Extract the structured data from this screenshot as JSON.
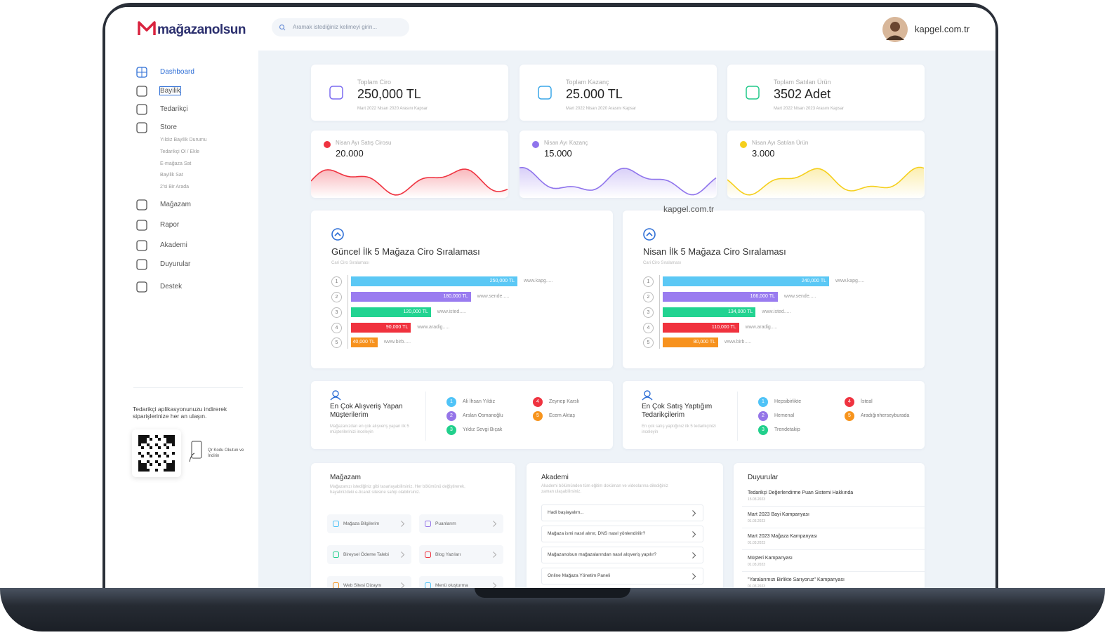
{
  "header": {
    "logo": "mağazanolsun",
    "search_placeholder": "Aramak istediğiniz kelimeyi girin...",
    "user": "kapgel.com.tr"
  },
  "sidebar": {
    "items": [
      "Dashboard",
      "Bayilik",
      "Tedarikçi",
      "Store",
      "Mağazam",
      "Rapor",
      "Akademi",
      "Duyurular",
      "Destek"
    ],
    "store_sub": [
      "Yıldız Bayilik Durumu",
      "Tedarikçi Ol / Ekle",
      "E-mağaza Sat",
      "Bayilik Sat",
      "2'si Bir Arada"
    ],
    "app_promo": "Tedarikçi aplikasyonunuzu indirerek siparişlerinize her an ulaşın.",
    "qr_text": "Qr Kodu Okutun ve İndirin"
  },
  "stats": [
    {
      "label": "Toplam Ciro",
      "value": "250,000 TL",
      "note": "Mart 2022 Nisan 2020 Arasını Kapsar",
      "color": "#7b6cf0"
    },
    {
      "label": "Toplam Kazanç",
      "value": "25.000 TL",
      "note": "Mart 2022 Nisan 2020 Arasını Kapsar",
      "color": "#3aa7e8"
    },
    {
      "label": "Toplam Satılan Ürün",
      "value": "3502 Adet",
      "note": "Mart 2022 Nisan 2023 Arasını Kapsar",
      "color": "#22c98a"
    }
  ],
  "monthly": [
    {
      "label": "Nisan Ayı Satış Cirosu",
      "value": "20.000",
      "color": "#ef3340"
    },
    {
      "label": "Nisan Ayı Kazanç",
      "value": "15.000",
      "color": "#8f74ec"
    },
    {
      "label": "Nisan Ayı Satılan Ürün",
      "value": "3.000",
      "color": "#f5cf1c"
    }
  ],
  "watermark": "kapgel.com.tr",
  "rankings": [
    {
      "title": "Güncel İlk 5 Mağaza Ciro Sıralaması",
      "subtitle": "Cari Ciro Sıralaması",
      "ranks": [
        1,
        2,
        3,
        4,
        5
      ],
      "values": [
        250000,
        180000,
        120000,
        90000,
        40000
      ],
      "value_labels": [
        "250,000 TL",
        "180,000 TL",
        "120,000 TL",
        "90,000 TL",
        "40,000 TL"
      ],
      "sites": [
        "www.kapg.....",
        "www.sende.....",
        "www.isted.....",
        "www.aradig.....",
        "www.birb....."
      ],
      "colors": [
        "#5bc8f5",
        "#9a7cf0",
        "#22d391",
        "#f0323e",
        "#f7921e"
      ]
    },
    {
      "title": "Nisan İlk 5 Mağaza Ciro Sıralaması",
      "subtitle": "Cari Ciro Sıralaması",
      "ranks": [
        1,
        2,
        3,
        4,
        5
      ],
      "values": [
        240000,
        166000,
        134000,
        110000,
        80000
      ],
      "value_labels": [
        "240,000 TL",
        "166,000 TL",
        "134,000 TL",
        "110,000 TL",
        "80,000 TL"
      ],
      "sites": [
        "www.kapg.....",
        "www.sende.....",
        "www.isted.....",
        "www.aradig.....",
        "www.birb....."
      ],
      "colors": [
        "#5bc8f5",
        "#9a7cf0",
        "#22d391",
        "#f0323e",
        "#f7921e"
      ]
    }
  ],
  "top_lists": [
    {
      "title": "En Çok Alışveriş Yapan Müşterilerim",
      "desc": "Mağazanızdan en çok alışveriş yapan ilk 5 müşterilerinizi inceleyin",
      "ranks": [
        1,
        2,
        3,
        4,
        5
      ],
      "names": [
        "Ali İhsan Yıldız",
        "Arslan Osmanoğlu",
        "Yıldız Sevgi Bıçak",
        "Zeynep Karslı",
        "Ecem Aktaş"
      ]
    },
    {
      "title": "En Çok Satış Yaptığım Tedarikçilerim",
      "desc": "En çok satış yaptığınız ilk 5 tedarikçinizi inceleyin",
      "ranks": [
        1,
        2,
        3,
        4,
        5
      ],
      "names": [
        "Hepsibirlikte",
        "Hemenal",
        "Trendetakip",
        "İsteal",
        "Aradığınherseyburada"
      ]
    }
  ],
  "rank_colors": [
    "#4fc3f7",
    "#9575e8",
    "#21d08c",
    "#ef3340",
    "#f7941d"
  ],
  "store_card": {
    "title": "Mağazam",
    "desc": "Mağazanızı istediğiniz gibi tasarlayabilirsiniz. Her bölümünü değiştirerek, hayalinizdeki e-ticaret sitesine sahip olabilirsiniz.",
    "buttons": [
      "Mağaza Bilgilerim",
      "Puanlarım",
      "Bireysel Ödeme Talebi",
      "Blog Yazıları",
      "Web Sitesi Dizaynı",
      "Menü oluşturma"
    ]
  },
  "academy_card": {
    "title": "Akademi",
    "desc": "Akademi bölümünden tüm eğitim doküman ve videolarına dilediğiniz zaman ulaşabilirsiniz.",
    "items": [
      "Hadi başlayalım...",
      "Mağaza ismi nasıl alınır, DNS nasıl yönlendirilir?",
      "Mağazanolsun mağazalarından nasıl alışveriş yapılır?",
      "Online Mağaza Yönetim Paneli"
    ]
  },
  "news_card": {
    "title": "Duyurular",
    "items": [
      {
        "title": "Tedarikçi Değerlendirme Puan Sistemi Hakkında",
        "date": "15.03.2023"
      },
      {
        "title": "Mart 2023 Bayi Kampanyası",
        "date": "01.03.2023"
      },
      {
        "title": "Mart 2023 Mağaza Kampanyası",
        "date": "01.03.2023"
      },
      {
        "title": "Müşteri Kampanyası",
        "date": "01.03.2023"
      },
      {
        "title": "\"Yaralarımızı Birlikte Sarıyoruz\" Kampanyası",
        "date": "01.03.2023"
      }
    ]
  }
}
